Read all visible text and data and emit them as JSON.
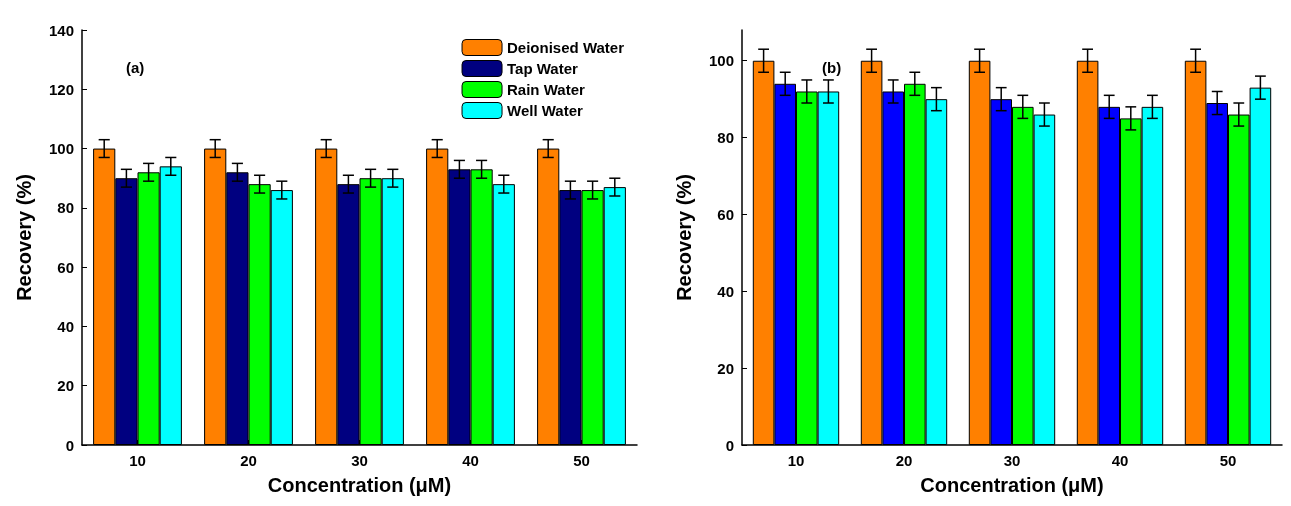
{
  "chart_data": [
    {
      "type": "bar",
      "xlabel": "Concentration (μM)",
      "ylabel": "Recovery (%)",
      "annotations": [
        "(a)"
      ],
      "categories": [
        "10",
        "20",
        "30",
        "40",
        "50"
      ],
      "ylim": [
        0,
        140
      ],
      "yticks": [
        0,
        20,
        40,
        60,
        80,
        100,
        120,
        140
      ],
      "grid": false,
      "legend": "top right",
      "series": [
        {
          "name": "Deionised Water",
          "color": "#ff8000",
          "values": [
            100,
            100,
            100,
            100,
            100
          ],
          "errors": [
            3,
            3,
            3,
            3,
            3
          ]
        },
        {
          "name": "Tap Water",
          "color": "#000080",
          "values": [
            90,
            92,
            88,
            93,
            86
          ],
          "errors": [
            3,
            3,
            3,
            3,
            3
          ]
        },
        {
          "name": "Rain Water",
          "color": "#00ff00",
          "values": [
            92,
            88,
            90,
            93,
            86
          ],
          "errors": [
            3,
            3,
            3,
            3,
            3
          ]
        },
        {
          "name": "Well Water",
          "color": "#00ffff",
          "values": [
            94,
            86,
            90,
            88,
            87
          ],
          "errors": [
            3,
            3,
            3,
            3,
            3
          ]
        }
      ]
    },
    {
      "type": "bar",
      "xlabel": "Concentration (μM)",
      "ylabel": "Recovery (%)",
      "annotations": [
        "(b)"
      ],
      "categories": [
        "10",
        "20",
        "30",
        "40",
        "50"
      ],
      "ylim": [
        0,
        108
      ],
      "yticks": [
        0,
        20,
        40,
        60,
        80,
        100
      ],
      "grid": false,
      "legend": false,
      "series": [
        {
          "color": "#ff8000",
          "values": [
            100,
            100,
            100,
            100,
            100
          ],
          "errors": [
            3,
            3,
            3,
            3,
            3
          ]
        },
        {
          "color": "#0000ff",
          "values": [
            94,
            92,
            90,
            88,
            89
          ],
          "errors": [
            3,
            3,
            3,
            3,
            3
          ]
        },
        {
          "color": "#00ff00",
          "values": [
            92,
            94,
            88,
            85,
            86
          ],
          "errors": [
            3,
            3,
            3,
            3,
            3
          ]
        },
        {
          "color": "#00ffff",
          "values": [
            92,
            90,
            86,
            88,
            93
          ],
          "errors": [
            3,
            3,
            3,
            3,
            3
          ]
        }
      ]
    }
  ]
}
